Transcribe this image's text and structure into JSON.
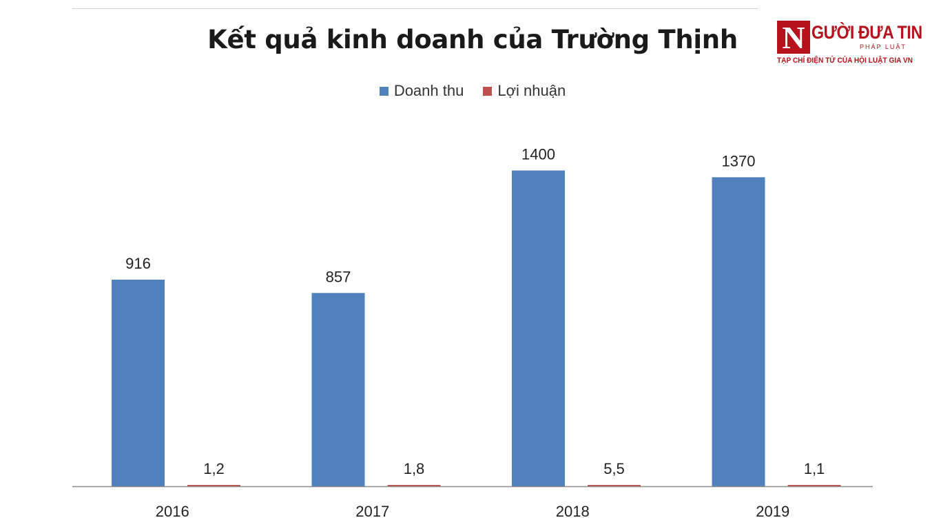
{
  "brand": {
    "letter": "N",
    "name": "GƯỜI ĐƯA TIN",
    "sub": "PHÁP LUẬT",
    "tagline": "TẠP CHÍ ĐIỆN TỬ CỦA HỘI LUẬT GIA VN",
    "color": "#b5121b"
  },
  "chart_data": {
    "type": "bar",
    "title": "Kết quả kinh doanh của Trường Thịnh",
    "categories": [
      "2016",
      "2017",
      "2018",
      "2019"
    ],
    "series": [
      {
        "name": "Doanh thu",
        "color": "#4f81bd",
        "values": [
          916,
          857,
          1400,
          1370
        ],
        "labels": [
          "916",
          "857",
          "1400",
          "1370"
        ]
      },
      {
        "name": "Lợi nhuận",
        "color": "#c0504d",
        "values": [
          1.2,
          1.8,
          5.5,
          1.1
        ],
        "labels": [
          "1,2",
          "1,8",
          "5,5",
          "1,1"
        ]
      }
    ],
    "ylim": [
      0,
      1600
    ],
    "grid": false,
    "legend": "top-center"
  }
}
